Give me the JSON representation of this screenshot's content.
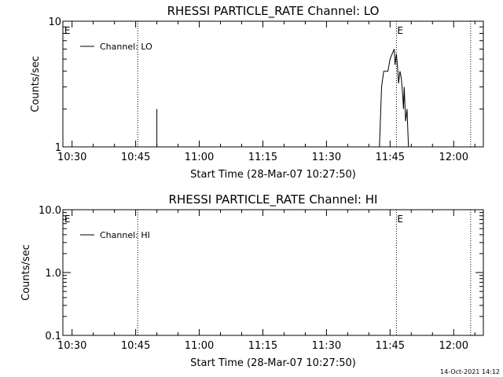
{
  "chart_data": [
    {
      "type": "line",
      "title": "RHESSI PARTICLE_RATE Channel: LO",
      "xlabel": "Start Time (28-Mar-07 10:27:50)",
      "ylabel": "Counts/sec",
      "yscale": "log",
      "ylim": [
        1,
        10
      ],
      "yticks": [
        "1",
        "10"
      ],
      "xlim": [
        "10:27:50",
        "12:07:00"
      ],
      "xticks": [
        "10:30",
        "10:45",
        "11:00",
        "11:15",
        "11:30",
        "11:45",
        "12:00"
      ],
      "legend": "top-left",
      "grid": false,
      "markers": [
        {
          "time": "10:28:00",
          "label": "E",
          "dotted": false
        },
        {
          "time": "10:45:30",
          "label": "",
          "dotted": true
        },
        {
          "time": "11:46:30",
          "label": "E",
          "dotted": true
        },
        {
          "time": "12:04:00",
          "label": "",
          "dotted": true
        }
      ],
      "series": [
        {
          "name": "Channel: LO",
          "color": "#000000",
          "segments": [
            [
              [
                "10:50:00",
                1.0
              ],
              [
                "10:50:00",
                2.0
              ]
            ],
            [
              [
                "11:42:30",
                1.0
              ],
              [
                "11:43:00",
                3.0
              ],
              [
                "11:43:30",
                4.0
              ],
              [
                "11:44:30",
                4.0
              ],
              [
                "11:45:00",
                5.0
              ],
              [
                "11:45:30",
                5.5
              ],
              [
                "11:46:00",
                6.0
              ],
              [
                "11:46:10",
                4.5
              ],
              [
                "11:46:30",
                5.5
              ],
              [
                "11:46:50",
                4.0
              ],
              [
                "11:47:00",
                3.2
              ],
              [
                "11:47:20",
                4.0
              ],
              [
                "11:47:40",
                3.5
              ],
              [
                "11:48:00",
                2.5
              ],
              [
                "11:48:10",
                2.0
              ],
              [
                "11:48:20",
                3.0
              ],
              [
                "11:48:40",
                1.6
              ],
              [
                "11:49:00",
                2.0
              ],
              [
                "11:49:20",
                1.0
              ]
            ]
          ]
        }
      ]
    },
    {
      "type": "line",
      "title": "RHESSI PARTICLE_RATE Channel: HI",
      "xlabel": "Start Time (28-Mar-07 10:27:50)",
      "ylabel": "Counts/sec",
      "yscale": "log",
      "ylim": [
        0.1,
        10
      ],
      "yticks": [
        "0.1",
        "1.0",
        "10.0"
      ],
      "xlim": [
        "10:27:50",
        "12:07:00"
      ],
      "xticks": [
        "10:30",
        "10:45",
        "11:00",
        "11:15",
        "11:30",
        "11:45",
        "12:00"
      ],
      "legend": "top-left",
      "grid": false,
      "markers": [
        {
          "time": "10:28:00",
          "label": "E",
          "dotted": false
        },
        {
          "time": "10:45:30",
          "label": "",
          "dotted": true
        },
        {
          "time": "11:46:30",
          "label": "E",
          "dotted": true
        },
        {
          "time": "12:04:00",
          "label": "",
          "dotted": true
        }
      ],
      "series": [
        {
          "name": "Channel: HI",
          "color": "#000000",
          "segments": []
        }
      ]
    }
  ],
  "footer": {
    "timestamp": "14-Oct-2021 14:12"
  }
}
